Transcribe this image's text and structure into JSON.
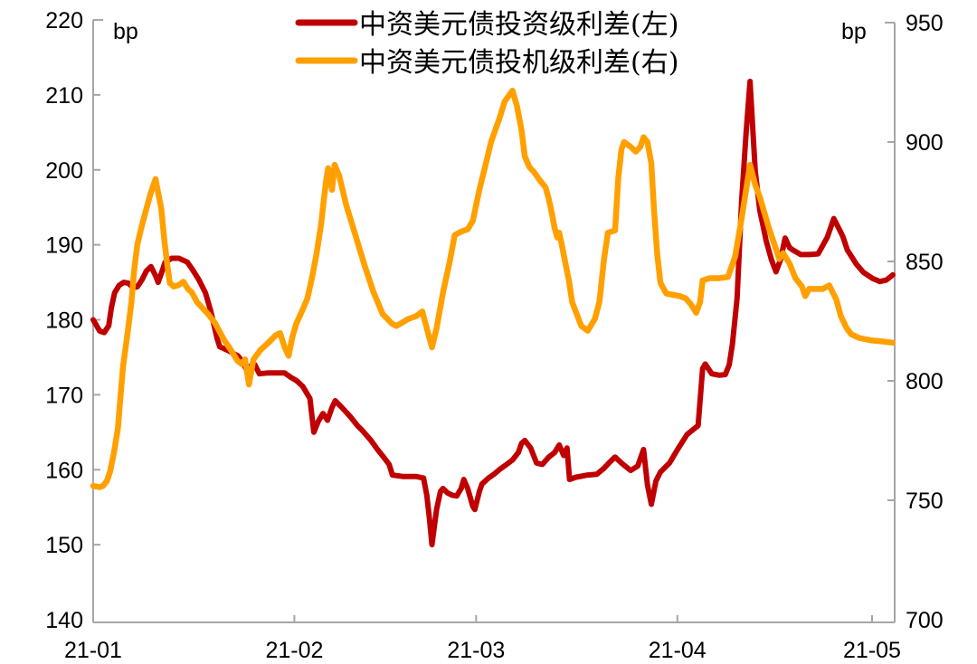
{
  "chart_data": {
    "type": "line",
    "title": "",
    "legend_position": "top-center",
    "grid": false,
    "x_axis": {
      "tick_labels": [
        "21-01",
        "21-02",
        "21-03",
        "21-04",
        "21-05"
      ],
      "tick_days": [
        0,
        31,
        59,
        90,
        120
      ],
      "domain_days": [
        0,
        123.5
      ]
    },
    "left_axis": {
      "label": "bp",
      "min": 140,
      "max": 220,
      "step": 10,
      "tick_values": [
        140,
        150,
        160,
        170,
        180,
        190,
        200,
        210,
        220
      ]
    },
    "right_axis": {
      "label": "bp",
      "min": 700,
      "max": 950,
      "step": 50,
      "tick_values": [
        700,
        750,
        800,
        850,
        900,
        950
      ]
    },
    "axis_color": "#a6a6a6",
    "series": [
      {
        "name": "中资美元债投资级利差(左)",
        "axis": "left",
        "color": "#C00000",
        "points": [
          [
            0,
            180
          ],
          [
            1,
            178.5
          ],
          [
            1.7,
            178.3
          ],
          [
            2.4,
            179.2
          ],
          [
            2.8,
            181.6
          ],
          [
            3.3,
            183.6
          ],
          [
            4,
            184.6
          ],
          [
            4.7,
            185
          ],
          [
            5.4,
            184.9
          ],
          [
            6.1,
            184.3
          ],
          [
            6.8,
            184.4
          ],
          [
            7.5,
            185.3
          ],
          [
            8.2,
            186.5
          ],
          [
            8.9,
            187.1
          ],
          [
            9.6,
            185.9
          ],
          [
            10,
            185
          ],
          [
            10.7,
            186.7
          ],
          [
            11.1,
            187.7
          ],
          [
            12.1,
            188.2
          ],
          [
            13.2,
            188.2
          ],
          [
            14.5,
            187.7
          ],
          [
            15.3,
            186.7
          ],
          [
            16.3,
            185.3
          ],
          [
            17.3,
            183.6
          ],
          [
            18.1,
            181.2
          ],
          [
            19.1,
            177.5
          ],
          [
            19.5,
            176.4
          ],
          [
            20.8,
            175.9
          ],
          [
            21.6,
            175.5
          ],
          [
            22.3,
            175.2
          ],
          [
            23,
            174.4
          ],
          [
            23.7,
            173.2
          ],
          [
            24.2,
            173.8
          ],
          [
            24.9,
            174
          ],
          [
            25.6,
            172.8
          ],
          [
            26.8,
            172.9
          ],
          [
            29.5,
            172.9
          ],
          [
            30.5,
            172.3
          ],
          [
            31.3,
            171.9
          ],
          [
            32.3,
            171.1
          ],
          [
            33.4,
            169.5
          ],
          [
            34,
            165
          ],
          [
            34.7,
            166.5
          ],
          [
            35.4,
            167.5
          ],
          [
            36.1,
            166.6
          ],
          [
            36.8,
            168.3
          ],
          [
            37.3,
            169.2
          ],
          [
            38.2,
            168.4
          ],
          [
            39.6,
            167.1
          ],
          [
            40.7,
            165.9
          ],
          [
            41.4,
            165.3
          ],
          [
            42.8,
            163.9
          ],
          [
            43.8,
            162.7
          ],
          [
            44.9,
            161.5
          ],
          [
            45.6,
            160.7
          ],
          [
            46.1,
            159.3
          ],
          [
            47.7,
            159.1
          ],
          [
            49.7,
            159.1
          ],
          [
            50.9,
            158.9
          ],
          [
            51.4,
            156.6
          ],
          [
            51.8,
            153.5
          ],
          [
            52.2,
            150
          ],
          [
            52.9,
            154.7
          ],
          [
            53.5,
            157.1
          ],
          [
            53.9,
            157.5
          ],
          [
            54.6,
            156.9
          ],
          [
            55.3,
            156.6
          ],
          [
            56,
            156.5
          ],
          [
            56.7,
            157.5
          ],
          [
            57.1,
            158.7
          ],
          [
            57.7,
            157.5
          ],
          [
            58.5,
            155.1
          ],
          [
            58.8,
            154.7
          ],
          [
            59.5,
            157.1
          ],
          [
            59.9,
            158.1
          ],
          [
            60.9,
            158.9
          ],
          [
            61.9,
            159.5
          ],
          [
            62.7,
            160.1
          ],
          [
            63.7,
            160.7
          ],
          [
            64.6,
            161.3
          ],
          [
            65.5,
            162.3
          ],
          [
            66,
            163.5
          ],
          [
            66.5,
            163.9
          ],
          [
            67.4,
            162.9
          ],
          [
            68.3,
            160.9
          ],
          [
            69.2,
            160.7
          ],
          [
            70.2,
            161.7
          ],
          [
            71.1,
            162.3
          ],
          [
            71.8,
            163.3
          ],
          [
            72.5,
            161.9
          ],
          [
            73,
            162.9
          ],
          [
            73.4,
            158.7
          ],
          [
            74.4,
            159
          ],
          [
            76.2,
            159.3
          ],
          [
            77.6,
            159.4
          ],
          [
            78.7,
            160.2
          ],
          [
            79.7,
            161.1
          ],
          [
            80.4,
            161.7
          ],
          [
            81.5,
            160.8
          ],
          [
            82.8,
            159.9
          ],
          [
            83.9,
            160.5
          ],
          [
            84.8,
            162.7
          ],
          [
            85.4,
            158
          ],
          [
            86,
            155.4
          ],
          [
            86.7,
            158.5
          ],
          [
            87.4,
            159.7
          ],
          [
            88.8,
            160.9
          ],
          [
            90.1,
            162.8
          ],
          [
            91.5,
            164.7
          ],
          [
            93.2,
            165.9
          ],
          [
            93.9,
            173.5
          ],
          [
            94.3,
            174.1
          ],
          [
            95.3,
            172.8
          ],
          [
            96.5,
            172.6
          ],
          [
            97.4,
            172.7
          ],
          [
            98,
            174
          ],
          [
            98.5,
            176.8
          ],
          [
            99.2,
            182.9
          ],
          [
            99.9,
            195.8
          ],
          [
            100.6,
            205
          ],
          [
            101.2,
            211.8
          ],
          [
            102,
            199.8
          ],
          [
            102.7,
            194.6
          ],
          [
            103.7,
            190.5
          ],
          [
            104.5,
            188
          ],
          [
            105.2,
            186.4
          ],
          [
            105.9,
            188
          ],
          [
            106.6,
            190.9
          ],
          [
            107.3,
            189.6
          ],
          [
            107.8,
            189.3
          ],
          [
            109,
            188.7
          ],
          [
            110.3,
            188.7
          ],
          [
            111.7,
            188.8
          ],
          [
            113.1,
            191
          ],
          [
            114.1,
            193.5
          ],
          [
            115,
            192
          ],
          [
            115.5,
            191.1
          ],
          [
            116.2,
            189.3
          ],
          [
            117.6,
            187.4
          ],
          [
            118.7,
            186.3
          ],
          [
            120.1,
            185.5
          ],
          [
            121.2,
            185.1
          ],
          [
            122.2,
            185.3
          ],
          [
            123.2,
            186
          ]
        ]
      },
      {
        "name": "中资美元债投机级利差(右)",
        "axis": "right",
        "color": "#FFA000",
        "points": [
          [
            0,
            756
          ],
          [
            1,
            755.5
          ],
          [
            1.5,
            756
          ],
          [
            2.1,
            758
          ],
          [
            2.6,
            762
          ],
          [
            3.2,
            770
          ],
          [
            3.8,
            780
          ],
          [
            4.2,
            793
          ],
          [
            4.6,
            806
          ],
          [
            5,
            814
          ],
          [
            5.4,
            822
          ],
          [
            5.9,
            833
          ],
          [
            6.3,
            846
          ],
          [
            6.8,
            857
          ],
          [
            7.5,
            865
          ],
          [
            8.2,
            872
          ],
          [
            8.8,
            878
          ],
          [
            9.6,
            884.5
          ],
          [
            10.5,
            872
          ],
          [
            11,
            858
          ],
          [
            11.4,
            849
          ],
          [
            11.8,
            841
          ],
          [
            12.4,
            839.5
          ],
          [
            13.1,
            840
          ],
          [
            13.9,
            841.5
          ],
          [
            14.6,
            838.5
          ],
          [
            15.2,
            837
          ],
          [
            16,
            833
          ],
          [
            17,
            830
          ],
          [
            17.7,
            828
          ],
          [
            18.8,
            824
          ],
          [
            20.2,
            817
          ],
          [
            21.2,
            813
          ],
          [
            22.2,
            808.5
          ],
          [
            22.9,
            807
          ],
          [
            23.4,
            809
          ],
          [
            24,
            798.5
          ],
          [
            24.7,
            809
          ],
          [
            25.8,
            813
          ],
          [
            27,
            816
          ],
          [
            28.1,
            819
          ],
          [
            28.8,
            820
          ],
          [
            29.5,
            814
          ],
          [
            30.1,
            810.5
          ],
          [
            30.7,
            818.5
          ],
          [
            31.3,
            824
          ],
          [
            32.3,
            830
          ],
          [
            33,
            834.5
          ],
          [
            33.7,
            843
          ],
          [
            34.4,
            853
          ],
          [
            35.1,
            865
          ],
          [
            35.5,
            875
          ],
          [
            35.9,
            884
          ],
          [
            36.2,
            889
          ],
          [
            36.8,
            880
          ],
          [
            37.2,
            890.5
          ],
          [
            37.9,
            886
          ],
          [
            39,
            873.5
          ],
          [
            40.4,
            861
          ],
          [
            41.8,
            848.5
          ],
          [
            43.2,
            837
          ],
          [
            44.6,
            828
          ],
          [
            46,
            824
          ],
          [
            46.7,
            823
          ],
          [
            47.7,
            824.5
          ],
          [
            48.6,
            826
          ],
          [
            49.7,
            827
          ],
          [
            50.7,
            829
          ],
          [
            51.6,
            820
          ],
          [
            52.2,
            814
          ],
          [
            52.9,
            822
          ],
          [
            53.9,
            837
          ],
          [
            54.9,
            849.5
          ],
          [
            55.7,
            861
          ],
          [
            56.7,
            862.5
          ],
          [
            57.7,
            863.5
          ],
          [
            58.5,
            867
          ],
          [
            59.5,
            880
          ],
          [
            60.5,
            891
          ],
          [
            61.3,
            900
          ],
          [
            62.6,
            910
          ],
          [
            63.4,
            917
          ],
          [
            64.6,
            921.5
          ],
          [
            65.3,
            915
          ],
          [
            66,
            905
          ],
          [
            66.5,
            894
          ],
          [
            67.2,
            889.5
          ],
          [
            67.9,
            887.5
          ],
          [
            68.8,
            884
          ],
          [
            69.7,
            881
          ],
          [
            70.2,
            876
          ],
          [
            70.6,
            871
          ],
          [
            71.1,
            864
          ],
          [
            71.5,
            860
          ],
          [
            71.8,
            862
          ],
          [
            72.2,
            857
          ],
          [
            72.7,
            850
          ],
          [
            73.3,
            842
          ],
          [
            73.8,
            833
          ],
          [
            74.5,
            828
          ],
          [
            75.2,
            823
          ],
          [
            76.2,
            821
          ],
          [
            77.3,
            826
          ],
          [
            78,
            833
          ],
          [
            78.7,
            851
          ],
          [
            79.3,
            862
          ],
          [
            80.4,
            863
          ],
          [
            80.9,
            885
          ],
          [
            81.4,
            897
          ],
          [
            81.8,
            900
          ],
          [
            82.8,
            898
          ],
          [
            83.6,
            896
          ],
          [
            84.3,
            898
          ],
          [
            84.8,
            902
          ],
          [
            85.4,
            900
          ],
          [
            86,
            891
          ],
          [
            86.4,
            872
          ],
          [
            86.9,
            853
          ],
          [
            87.4,
            841
          ],
          [
            88.3,
            836.5
          ],
          [
            89.4,
            836
          ],
          [
            90.4,
            835.5
          ],
          [
            91.3,
            834.5
          ],
          [
            92.1,
            832
          ],
          [
            92.9,
            828.5
          ],
          [
            93.5,
            833
          ],
          [
            93.9,
            842
          ],
          [
            95,
            843
          ],
          [
            96.4,
            843
          ],
          [
            97.8,
            843.5
          ],
          [
            98.9,
            852
          ],
          [
            99.9,
            868
          ],
          [
            100.6,
            880
          ],
          [
            101.2,
            890.5
          ],
          [
            102,
            882
          ],
          [
            102.7,
            877
          ],
          [
            104.1,
            864
          ],
          [
            105.1,
            856
          ],
          [
            105.7,
            851
          ],
          [
            106.3,
            853.5
          ],
          [
            107.3,
            849
          ],
          [
            108.2,
            843
          ],
          [
            109.2,
            839.5
          ],
          [
            109.7,
            835.5
          ],
          [
            110.3,
            838.5
          ],
          [
            112.4,
            838.5
          ],
          [
            113.4,
            840
          ],
          [
            114.5,
            834
          ],
          [
            115.2,
            827
          ],
          [
            116.1,
            822
          ],
          [
            116.8,
            819.5
          ],
          [
            118,
            818
          ],
          [
            119.7,
            817
          ],
          [
            121.5,
            816.5
          ],
          [
            123.2,
            816
          ]
        ]
      }
    ]
  },
  "legend": {
    "items": [
      {
        "label": "中资美元债投资级利差(左)",
        "color": "#C00000"
      },
      {
        "label": "中资美元债投机级利差(右)",
        "color": "#FFA000"
      }
    ]
  }
}
